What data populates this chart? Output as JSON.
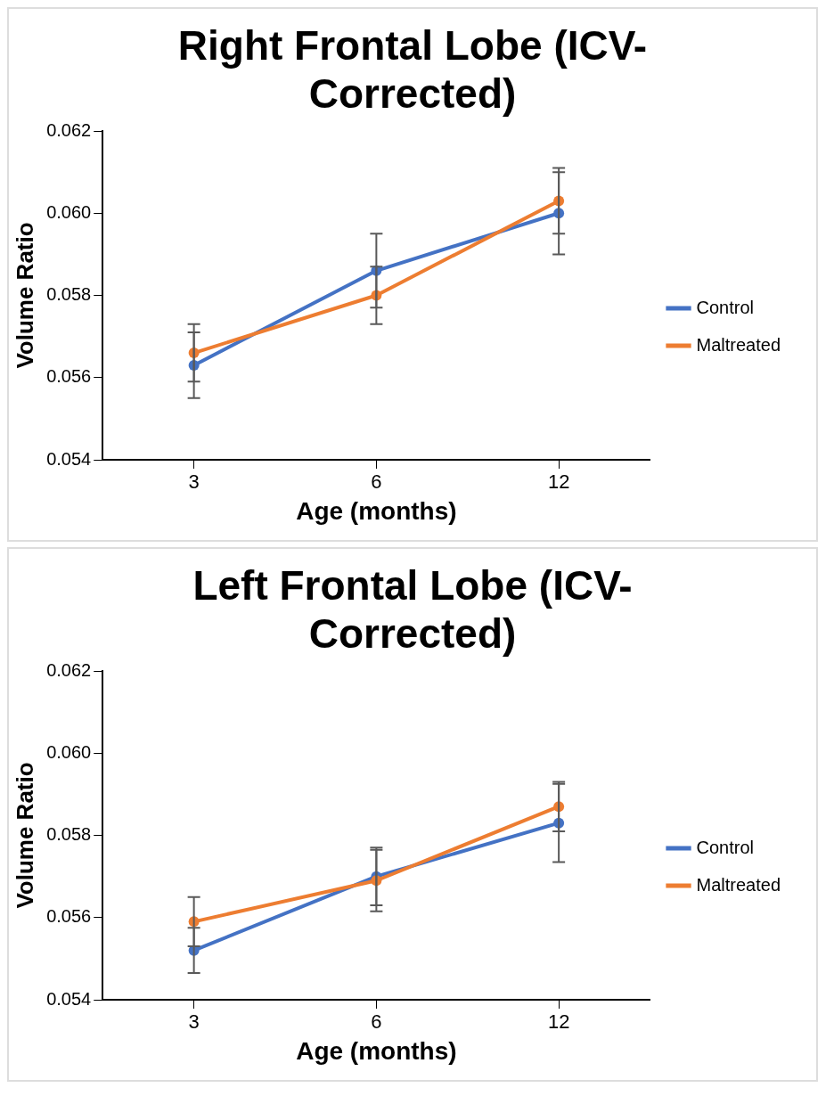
{
  "chart_data": [
    {
      "type": "line",
      "title": "Right Frontal Lobe (ICV-Corrected)",
      "xlabel": "Age (months)",
      "ylabel": "Volume Ratio",
      "categories": [
        "3",
        "6",
        "12"
      ],
      "series": [
        {
          "name": "Control",
          "color": "#4472c4",
          "values": [
            0.0563,
            0.0586,
            0.06
          ],
          "errors": [
            0.0008,
            0.0009,
            0.001
          ]
        },
        {
          "name": "Maltreated",
          "color": "#ed7d31",
          "values": [
            0.0566,
            0.058,
            0.0603
          ],
          "errors": [
            0.0007,
            0.0007,
            0.0008
          ]
        }
      ],
      "ylim": [
        0.054,
        0.062
      ],
      "yticks": [
        0.054,
        0.056,
        0.058,
        {
          "value": 0.06,
          "label": "0.060"
        },
        0.062
      ],
      "legend": "right",
      "marker": "circle",
      "line_style": "solid"
    },
    {
      "type": "line",
      "title": "Left Frontal Lobe (ICV-Corrected)",
      "xlabel": "Age (months)",
      "ylabel": "Volume Ratio",
      "categories": [
        "3",
        "6",
        "12"
      ],
      "series": [
        {
          "name": "Control",
          "color": "#4472c4",
          "values": [
            0.0552,
            0.057,
            0.0583
          ],
          "errors": [
            0.00055,
            0.0007,
            0.00095
          ]
        },
        {
          "name": "Maltreated",
          "color": "#ed7d31",
          "values": [
            0.0559,
            0.0569,
            0.0587
          ],
          "errors": [
            0.0006,
            0.00075,
            0.0006
          ]
        }
      ],
      "ylim": [
        0.054,
        0.062
      ],
      "yticks": [
        0.054,
        0.056,
        0.058,
        {
          "value": 0.06,
          "label": "0.060"
        },
        0.062
      ],
      "legend": "right",
      "marker": "circle",
      "line_style": "solid"
    }
  ]
}
